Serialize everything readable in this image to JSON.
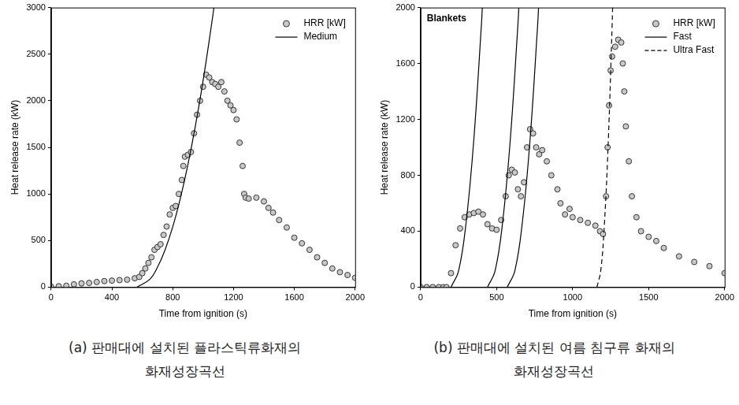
{
  "chart_data": [
    {
      "type": "scatter",
      "caption": [
        "(a) 판매대에 설치된 플라스틱류화재의",
        "화재성장곡선"
      ],
      "x_label": "Time from ignition (s)",
      "y_label": "Heat release rate (kW)",
      "xlim": [
        0,
        2000
      ],
      "xticks": [
        0,
        400,
        800,
        1200,
        1600,
        2000
      ],
      "ylim": [
        0,
        3000
      ],
      "yticks": [
        0,
        500,
        1000,
        1500,
        2000,
        2500,
        3000
      ],
      "grid": false,
      "legend": "top-right",
      "series": [
        {
          "name": "HRR [kW]",
          "type": "scatter",
          "marker": "circle",
          "color": "#c8c8c8",
          "x": [
            0,
            50,
            100,
            150,
            200,
            250,
            300,
            350,
            400,
            450,
            500,
            550,
            580,
            600,
            620,
            640,
            660,
            680,
            700,
            720,
            740,
            760,
            780,
            800,
            820,
            840,
            860,
            870,
            880,
            900,
            920,
            940,
            960,
            980,
            1000,
            1020,
            1040,
            1060,
            1080,
            1100,
            1120,
            1140,
            1160,
            1180,
            1200,
            1220,
            1240,
            1260,
            1270,
            1280,
            1300,
            1350,
            1400,
            1430,
            1460,
            1500,
            1550,
            1600,
            1650,
            1700,
            1750,
            1800,
            1850,
            1900,
            1950,
            2000
          ],
          "values": [
            5,
            10,
            15,
            30,
            40,
            45,
            55,
            65,
            70,
            75,
            80,
            95,
            110,
            150,
            200,
            260,
            320,
            400,
            430,
            460,
            560,
            650,
            780,
            850,
            870,
            1000,
            1150,
            1300,
            1400,
            1420,
            1450,
            1650,
            1850,
            2000,
            2150,
            2280,
            2250,
            2200,
            2180,
            2150,
            2200,
            2100,
            2000,
            1950,
            1900,
            1800,
            1550,
            1300,
            1000,
            960,
            950,
            960,
            920,
            850,
            800,
            720,
            640,
            530,
            470,
            400,
            320,
            260,
            200,
            160,
            130,
            100
          ]
        },
        {
          "name": "Medium",
          "type": "line",
          "line_style": "solid",
          "color": "#000000",
          "x": [
            565,
            650,
            700,
            750,
            800,
            850,
            900,
            950,
            1000,
            1050,
            1071
          ],
          "values": [
            0,
            85,
            214,
            401,
            647,
            952,
            1315,
            1737,
            2218,
            2757,
            3000
          ]
        }
      ]
    },
    {
      "type": "scatter",
      "caption": [
        "(b) 판매대에 설치된 여름 침구류 화재의",
        "화재성장곡선"
      ],
      "x_label": "Time from ignition (s)",
      "y_label": "Heat release rate (kW)",
      "annotations": [
        "Blankets"
      ],
      "xlim": [
        0,
        2000
      ],
      "xticks": [
        0,
        500,
        1000,
        1500,
        2000
      ],
      "ylim": [
        0,
        2000
      ],
      "yticks": [
        0,
        400,
        800,
        1200,
        1600,
        2000
      ],
      "grid": false,
      "legend": "top-right",
      "series": [
        {
          "name": "HRR [kW]",
          "type": "scatter",
          "marker": "circle",
          "color": "#c8c8c8",
          "x": [
            0,
            40,
            80,
            120,
            150,
            170,
            200,
            230,
            260,
            290,
            320,
            350,
            380,
            410,
            440,
            470,
            500,
            530,
            560,
            580,
            600,
            620,
            640,
            660,
            680,
            700,
            720,
            740,
            760,
            780,
            800,
            830,
            860,
            900,
            920,
            950,
            980,
            1000,
            1050,
            1100,
            1150,
            1180,
            1200,
            1220,
            1230,
            1240,
            1250,
            1260,
            1280,
            1300,
            1320,
            1330,
            1340,
            1350,
            1370,
            1390,
            1420,
            1450,
            1500,
            1550,
            1600,
            1700,
            1800,
            1900,
            2000
          ],
          "values": [
            0,
            0,
            0,
            0,
            0,
            0,
            100,
            300,
            420,
            500,
            520,
            530,
            540,
            520,
            450,
            420,
            410,
            480,
            650,
            800,
            840,
            820,
            700,
            650,
            750,
            1000,
            1130,
            1100,
            1000,
            950,
            980,
            900,
            800,
            700,
            600,
            520,
            560,
            500,
            480,
            460,
            440,
            400,
            380,
            650,
            1000,
            1300,
            1550,
            1650,
            1720,
            1770,
            1750,
            1600,
            1400,
            1150,
            900,
            650,
            500,
            400,
            360,
            330,
            280,
            220,
            180,
            150,
            100
          ]
        },
        {
          "name": "Fast",
          "type": "line",
          "line_style": "solid",
          "color": "#000000",
          "x": [
            200,
            250,
            300,
            350,
            400,
            406
          ],
          "values": [
            0,
            117,
            469,
            1055,
            1876,
            2000
          ]
        },
        {
          "name": "Fast",
          "type": "line",
          "line_style": "solid",
          "color": "#000000",
          "x": [
            440,
            490,
            540,
            590,
            640,
            646
          ],
          "values": [
            0,
            117,
            469,
            1055,
            1876,
            2000
          ]
        },
        {
          "name": "Fast",
          "type": "line",
          "line_style": "solid",
          "color": "#000000",
          "x": [
            570,
            620,
            670,
            720,
            770,
            776
          ],
          "values": [
            0,
            117,
            469,
            1055,
            1876,
            2000
          ]
        },
        {
          "name": "Ultra Fast",
          "type": "line",
          "line_style": "dashed",
          "color": "#000000",
          "x": [
            1160,
            1185,
            1210,
            1235,
            1260,
            1263
          ],
          "values": [
            0,
            117,
            469,
            1055,
            1876,
            2000
          ]
        }
      ]
    }
  ]
}
